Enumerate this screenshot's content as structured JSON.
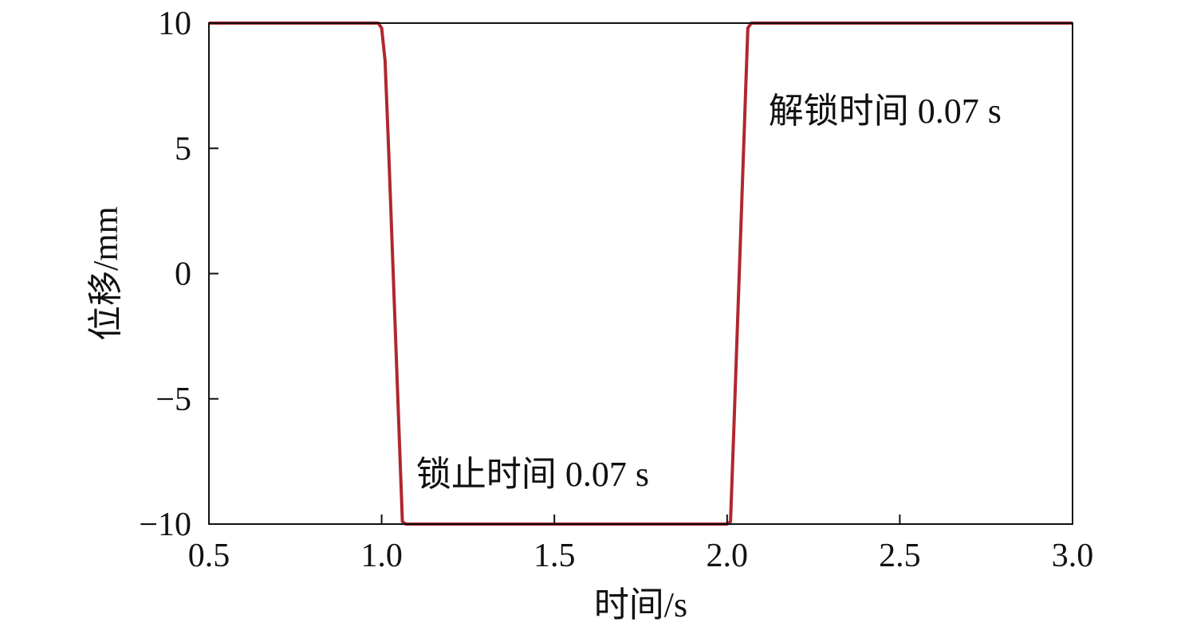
{
  "chart_data": {
    "type": "line",
    "xlabel": "时间/s",
    "ylabel": "位移/mm",
    "xlim": [
      0.5,
      3.0
    ],
    "ylim": [
      -10,
      10
    ],
    "xticks": [
      0.5,
      1.0,
      1.5,
      2.0,
      2.5,
      3.0
    ],
    "xtick_labels": [
      "0.5",
      "1.0",
      "1.5",
      "2.0",
      "2.5",
      "3.0"
    ],
    "yticks": [
      10,
      5,
      0,
      -5,
      -10
    ],
    "ytick_labels": [
      "10",
      "5",
      "0",
      "−5",
      "−10"
    ],
    "grid": false,
    "series": [
      {
        "color": "#b0272f",
        "x": [
          0.5,
          0.99,
          1.0,
          1.01,
          1.02,
          1.06,
          1.07,
          2.0,
          2.01,
          2.02,
          2.06,
          2.07,
          3.0
        ],
        "y": [
          10,
          10,
          9.8,
          8.5,
          5.0,
          -9.9,
          -10,
          -10,
          -9.9,
          -6.0,
          9.8,
          10,
          10
        ]
      }
    ],
    "annotations": [
      {
        "text": "锁止时间 0.07 s",
        "x": 1.1,
        "y": -8.0
      },
      {
        "text": "解锁时间 0.07 s",
        "x": 2.12,
        "y": 6.5
      }
    ]
  }
}
